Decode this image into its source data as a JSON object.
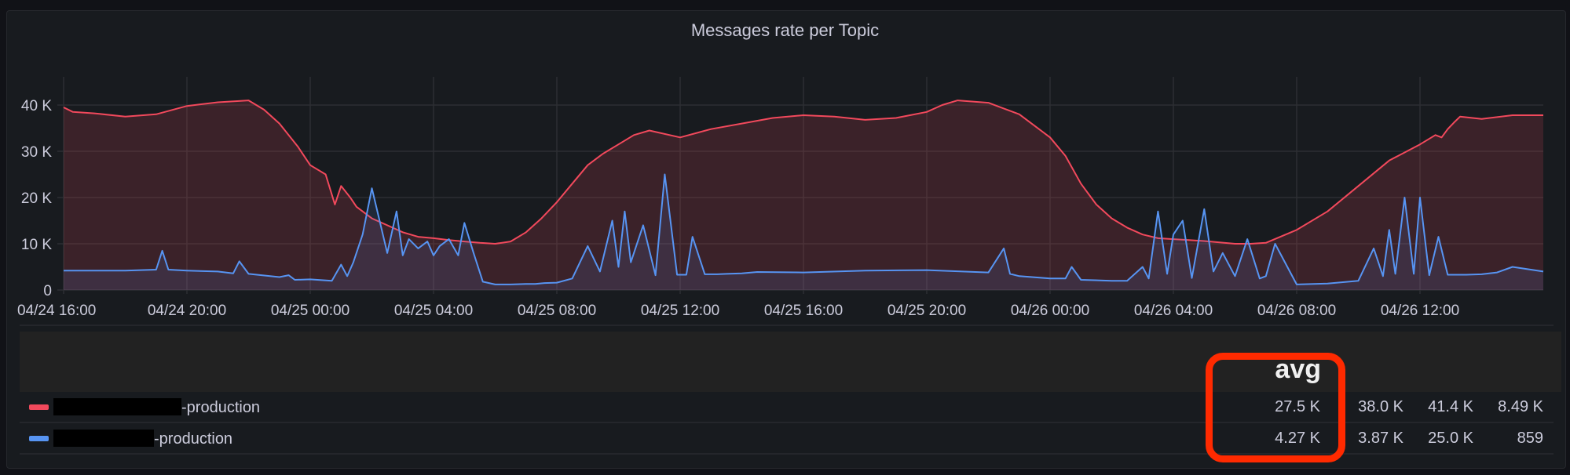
{
  "panel": {
    "title": "Messages rate per Topic"
  },
  "chart_data": {
    "type": "area",
    "title": "Messages rate per Topic",
    "xlabel": "",
    "ylabel": "",
    "ylim": [
      0,
      45000
    ],
    "y_ticks": [
      "0",
      "10 K",
      "20 K",
      "30 K",
      "40 K"
    ],
    "x_ticks": [
      "04/24 16:00",
      "04/24 20:00",
      "04/25 00:00",
      "04/25 04:00",
      "04/25 08:00",
      "04/25 12:00",
      "04/25 16:00",
      "04/25 20:00",
      "04/26 00:00",
      "04/26 04:00",
      "04/26 08:00",
      "04/26 12:00"
    ],
    "x_unit": "hours since 04/24 16:00",
    "grid": true,
    "legend_position": "bottom-table",
    "series": [
      {
        "name": "[redacted]-production",
        "color": "#F2495C",
        "x": [
          0,
          0.3,
          1,
          2,
          3,
          4,
          5,
          6,
          6.5,
          7,
          7.6,
          8,
          8.5,
          8.8,
          9,
          9.3,
          9.5,
          10,
          10.5,
          11,
          11.5,
          12,
          12.5,
          13,
          13.5,
          14,
          14.5,
          15,
          15.5,
          16,
          16.5,
          17,
          17.5,
          18,
          18.5,
          19,
          20,
          21,
          22,
          23,
          24,
          25,
          26,
          27,
          28,
          28.5,
          29,
          30,
          31,
          32,
          32.5,
          33,
          33.5,
          34,
          34.5,
          35,
          35.5,
          36,
          36.5,
          37,
          37.5,
          38,
          38.5,
          39,
          40,
          41,
          42,
          43,
          44,
          44.5,
          44.7,
          44.9,
          45.1,
          45.3,
          46,
          47,
          48
        ],
        "values": [
          39500,
          38500,
          38200,
          37500,
          38000,
          39800,
          40600,
          41000,
          39000,
          36000,
          31000,
          27000,
          25000,
          18500,
          22500,
          20000,
          18000,
          15500,
          14000,
          12500,
          11500,
          11200,
          10800,
          10500,
          10200,
          10000,
          10500,
          12500,
          15500,
          19000,
          23000,
          27000,
          29500,
          31500,
          33500,
          34500,
          33000,
          34800,
          36000,
          37200,
          37800,
          37500,
          36800,
          37200,
          38500,
          40000,
          41000,
          40500,
          38000,
          33000,
          29000,
          23000,
          18500,
          15500,
          13500,
          12000,
          11200,
          11000,
          10800,
          10600,
          10300,
          10000,
          10000,
          10200,
          13000,
          17000,
          22500,
          28000,
          31500,
          33500,
          33000,
          34800,
          36200,
          37500,
          37000,
          37800,
          37800
        ]
      },
      {
        "name": "[redacted]-production",
        "color": "#5794F2",
        "x": [
          0,
          1,
          2,
          3,
          3.2,
          3.4,
          4,
          5,
          5.5,
          5.7,
          6,
          7,
          7.3,
          7.5,
          8,
          8.7,
          9,
          9.2,
          9.4,
          9.7,
          10,
          10.5,
          10.8,
          11,
          11.2,
          11.5,
          11.8,
          12,
          12.2,
          12.5,
          12.8,
          13,
          13.3,
          13.6,
          14,
          14.5,
          15,
          15.3,
          15.6,
          16,
          16.5,
          17,
          17.4,
          17.8,
          18,
          18.2,
          18.4,
          18.8,
          19.2,
          19.5,
          19.9,
          20.2,
          20.4,
          20.8,
          21,
          21.2,
          21.5,
          22,
          22.5,
          24,
          26,
          28,
          30,
          30.5,
          30.7,
          31,
          32,
          32.5,
          32.7,
          33,
          34,
          34.5,
          35,
          35.2,
          35.5,
          35.8,
          36,
          36.3,
          36.6,
          37,
          37.3,
          37.6,
          38,
          38.4,
          38.8,
          39,
          39.3,
          40,
          41,
          42,
          42.5,
          42.8,
          43,
          43.2,
          43.5,
          43.8,
          44,
          44.3,
          44.6,
          44.9,
          45.5,
          46,
          46.5,
          47,
          48
        ],
        "values": [
          4200,
          4200,
          4200,
          4400,
          8500,
          4400,
          4200,
          4000,
          3600,
          6200,
          3500,
          2800,
          3200,
          2200,
          2300,
          2000,
          5500,
          3000,
          6000,
          12000,
          22000,
          8000,
          17000,
          7500,
          11000,
          9000,
          10500,
          7500,
          9500,
          11000,
          7500,
          14500,
          8000,
          1800,
          1200,
          1200,
          1300,
          1300,
          1500,
          1600,
          2500,
          9500,
          4000,
          15000,
          5000,
          17000,
          6000,
          14000,
          3200,
          25000,
          3300,
          3300,
          11500,
          3400,
          3400,
          3400,
          3500,
          3600,
          3900,
          3800,
          4200,
          4300,
          3800,
          9000,
          3500,
          3000,
          2500,
          2500,
          5000,
          2200,
          2000,
          2000,
          5000,
          2500,
          17000,
          3500,
          12000,
          15000,
          2600,
          17500,
          4000,
          8000,
          3000,
          11000,
          2500,
          3000,
          10000,
          1200,
          1400,
          2000,
          9000,
          3000,
          13000,
          3500,
          20000,
          3500,
          20000,
          3200,
          11500,
          3300,
          3300,
          3400,
          3800,
          5000,
          4000
        ],
        "min_clip": 800
      }
    ],
    "legend_table": {
      "columns": [
        "avg",
        "",
        "",
        ""
      ],
      "rows": [
        {
          "name_suffix": "-production",
          "color": "#F2495C",
          "values": [
            "27.5 K",
            "38.0 K",
            "41.4 K",
            "8.49 K"
          ]
        },
        {
          "name_suffix": "-production",
          "color": "#5794F2",
          "values": [
            "4.27 K",
            "3.87 K",
            "25.0 K",
            "859"
          ]
        }
      ]
    }
  },
  "legend": {
    "header_highlight_label": "avg",
    "rows": [
      {
        "name_suffix": "-production",
        "avg": "27.5 K",
        "col2": "38.0 K",
        "col3": "41.4 K",
        "col4": "8.49 K"
      },
      {
        "name_suffix": "-production",
        "avg": "4.27 K",
        "col2": "3.87 K",
        "col3": "25.0 K",
        "col4": "859"
      }
    ]
  },
  "annotation": {
    "highlight_color": "#FF2A00",
    "label": "avg"
  }
}
